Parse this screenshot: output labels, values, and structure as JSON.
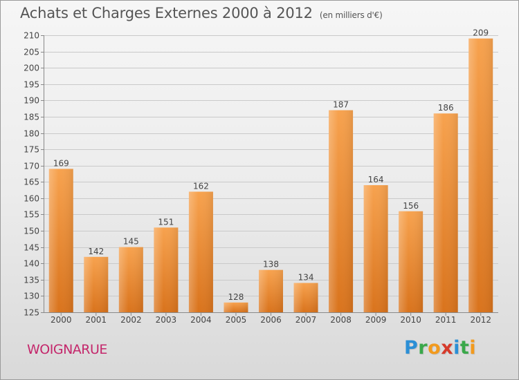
{
  "header": {
    "title": "Achats et Charges Externes 2000 à 2012",
    "unit": "(en milliers d'€)"
  },
  "footer": {
    "commune": "WOIGNARUE",
    "logo": {
      "text": "Proxiti",
      "letters": [
        "P",
        "r",
        "o",
        "x",
        "i",
        "t",
        "i"
      ],
      "colors": [
        "#2b8fd6",
        "#3aa84a",
        "#f29a1e",
        "#d63a2b",
        "#2b8fd6",
        "#3aa84a",
        "#f29a1e"
      ]
    }
  },
  "chart_data": {
    "type": "bar",
    "title": "Achats et Charges Externes 2000 à 2012",
    "subtitle": "(en milliers d'€)",
    "xlabel": "",
    "ylabel": "",
    "categories": [
      "2000",
      "2001",
      "2002",
      "2003",
      "2004",
      "2005",
      "2006",
      "2007",
      "2008",
      "2009",
      "2010",
      "2011",
      "2012"
    ],
    "values": [
      169,
      142,
      145,
      151,
      162,
      128,
      138,
      134,
      187,
      164,
      156,
      186,
      209
    ],
    "ylim": [
      125,
      210
    ],
    "yticks": [
      125,
      130,
      135,
      140,
      145,
      150,
      155,
      160,
      165,
      170,
      175,
      180,
      185,
      190,
      195,
      200,
      205,
      210
    ],
    "grid": true,
    "bar_color": "#f08a2a"
  }
}
